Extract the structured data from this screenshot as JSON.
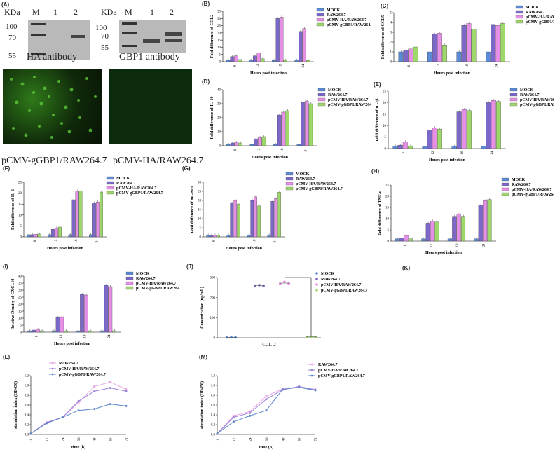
{
  "colors": {
    "mock": "#5b8bd6",
    "raw": "#7b68c8",
    "ha": "#e58fe5",
    "gbp1": "#9fd86a",
    "line_raw": "#e8a0e6",
    "line_ha": "#9b84d6",
    "line_gbp1": "#5d86c9"
  },
  "panel_letters": {
    "A": "(A)",
    "B": "(B)",
    "C": "(C)",
    "D": "(D)",
    "E": "(E)",
    "F": "(F)",
    "G": "(G)",
    "H": "(H)",
    "I": "(I)",
    "J": "(J)",
    "K": "(K)",
    "L": "(L)",
    "M": "(M)"
  },
  "blots": {
    "kda": "KDa",
    "m": "M",
    "lane1": "1",
    "lane2": "2",
    "left_markers": [
      "100",
      "70",
      "55"
    ],
    "right_markers": [
      "100",
      "70",
      "55"
    ],
    "left_label": "HA antibody",
    "right_label": "GBP1 antibody"
  },
  "micrographs": {
    "left_label": "pCMV-gGBP1/RAW264.7",
    "right_label": "pCMV-HA/RAW264.7"
  },
  "legend4": [
    "MOCK",
    "RAW264.7",
    "pCMV-HA/RAW264.7",
    "pCMV-gGBP1/RAW264.7"
  ],
  "legend3": [
    "RAW264.7",
    "pCMV-HA/RAW264.7",
    "pCMV-gGBP1/RAW264.7"
  ],
  "chart_data": [
    {
      "panel": "B",
      "type": "bar",
      "ylabel": "Fold difference of CCL2",
      "xlabel": "Hours post infection",
      "categories": [
        "6",
        "12",
        "18",
        "24"
      ],
      "ylim": [
        0,
        35
      ],
      "yticks": [
        0,
        5,
        10,
        15,
        20,
        25,
        30,
        35
      ],
      "series": [
        {
          "name": "MOCK",
          "values": [
            1,
            1,
            1,
            1
          ]
        },
        {
          "name": "RAW264.7",
          "values": [
            3.5,
            4,
            30,
            21
          ]
        },
        {
          "name": "pCMV-HA/RAW264.7",
          "values": [
            4,
            6,
            31,
            23
          ]
        },
        {
          "name": "pCMV-gGBP1/RAW264.7",
          "values": [
            1.5,
            2,
            1,
            0.8
          ]
        }
      ]
    },
    {
      "panel": "C",
      "type": "bar",
      "ylabel": "Fold difference of CCL5",
      "xlabel": "Hours post infection",
      "categories": [
        "6",
        "12",
        "18",
        "24"
      ],
      "ylim": [
        0,
        5
      ],
      "yticks": [
        0,
        1,
        2,
        3,
        4,
        5
      ],
      "series": [
        {
          "name": "MOCK",
          "values": [
            1,
            1,
            1,
            1
          ]
        },
        {
          "name": "RAW264.7",
          "values": [
            1.2,
            2.8,
            3.7,
            3.8
          ]
        },
        {
          "name": "pCMV-HA/RAW264.7",
          "values": [
            1.3,
            2.9,
            3.9,
            3.7
          ]
        },
        {
          "name": "pCMV-gGBP1/RAW264.7",
          "values": [
            1.5,
            1.7,
            3.3,
            3.9
          ]
        }
      ]
    },
    {
      "panel": "D",
      "type": "bar",
      "ylabel": "Fold difference of IL-10",
      "xlabel": "Hours post infection",
      "categories": [
        "6",
        "12",
        "18",
        "24"
      ],
      "ylim": [
        0,
        40
      ],
      "yticks": [
        0,
        10,
        20,
        30,
        40
      ],
      "series": [
        {
          "name": "MOCK",
          "values": [
            1,
            1,
            1,
            1
          ]
        },
        {
          "name": "RAW264.7",
          "values": [
            2,
            5,
            22,
            31
          ]
        },
        {
          "name": "pCMV-HA/RAW264.7",
          "values": [
            2.5,
            6,
            24,
            32
          ]
        },
        {
          "name": "pCMV-gGBP1/RAW264.7",
          "values": [
            2,
            6.5,
            25,
            30
          ]
        }
      ]
    },
    {
      "panel": "E",
      "type": "bar",
      "ylabel": "Fold difference of IL-1β",
      "xlabel": "Hours post infection",
      "categories": [
        "6",
        "12",
        "18",
        "24"
      ],
      "ylim": [
        0,
        25
      ],
      "yticks": [
        0,
        5,
        10,
        15,
        20,
        25
      ],
      "series": [
        {
          "name": "MOCK",
          "values": [
            1,
            1,
            1,
            1
          ]
        },
        {
          "name": "RAW264.7",
          "values": [
            1.5,
            8,
            16,
            20
          ]
        },
        {
          "name": "pCMV-HA/RAW264.7",
          "values": [
            3,
            9,
            17,
            21
          ]
        },
        {
          "name": "pCMV-gGBP1/RAW264.7",
          "values": [
            1,
            8.5,
            16.5,
            20.5
          ]
        }
      ]
    },
    {
      "panel": "F",
      "type": "bar",
      "ylabel": "Fold difference of IL-6",
      "xlabel": "Hours post infection",
      "categories": [
        "6",
        "12",
        "18",
        "24"
      ],
      "ylim": [
        0,
        25
      ],
      "yticks": [
        0,
        5,
        10,
        15,
        20,
        25
      ],
      "series": [
        {
          "name": "MOCK",
          "values": [
            1,
            1,
            1,
            1
          ]
        },
        {
          "name": "RAW264.7",
          "values": [
            1,
            3.5,
            17,
            15.5
          ]
        },
        {
          "name": "pCMV-HA/RAW264.7",
          "values": [
            1.2,
            4,
            21,
            16
          ]
        },
        {
          "name": "pCMV-gGBP1/RAW264.7",
          "values": [
            1.3,
            4.5,
            21,
            20.5
          ]
        }
      ]
    },
    {
      "panel": "G",
      "type": "bar",
      "ylabel": "Fold difference of mGBP1",
      "xlabel": "Hours post infection",
      "categories": [
        "6",
        "12",
        "18",
        "24"
      ],
      "ylim": [
        0,
        30
      ],
      "yticks": [
        0,
        5,
        10,
        15,
        20,
        25,
        30
      ],
      "series": [
        {
          "name": "MOCK",
          "values": [
            1,
            1,
            1,
            1
          ]
        },
        {
          "name": "RAW264.7",
          "values": [
            1,
            18.5,
            20,
            19.5
          ]
        },
        {
          "name": "pCMV-HA/RAW264.7",
          "values": [
            1,
            20,
            22,
            21
          ]
        },
        {
          "name": "pCMV-gGBP1/RAW264.7",
          "values": [
            1,
            18,
            17,
            24.5
          ]
        }
      ]
    },
    {
      "panel": "H",
      "type": "bar",
      "ylabel": "Fold difference of TNF-α",
      "xlabel": "Hours post infection",
      "categories": [
        "6",
        "12",
        "18",
        "24"
      ],
      "ylim": [
        0,
        25
      ],
      "yticks": [
        0,
        5,
        10,
        15,
        20,
        25
      ],
      "series": [
        {
          "name": "MOCK",
          "values": [
            1,
            1,
            1,
            1
          ]
        },
        {
          "name": "RAW264.7",
          "values": [
            1.5,
            8,
            11,
            16
          ]
        },
        {
          "name": "pCMV-HA/RAW264.7",
          "values": [
            2.5,
            9,
            12,
            18
          ]
        },
        {
          "name": "pCMV-gGBP1/RAW264.7",
          "values": [
            1,
            8.5,
            11,
            18.5
          ]
        }
      ]
    },
    {
      "panel": "I",
      "type": "bar",
      "ylabel": "Relative Density of CXCL10",
      "xlabel": "Hours post infection",
      "categories": [
        "6",
        "12",
        "18",
        "24"
      ],
      "ylim": [
        0,
        40
      ],
      "yticks": [
        0,
        5,
        10,
        15,
        20,
        25,
        30,
        35,
        40
      ],
      "series": [
        {
          "name": "MOCK",
          "values": [
            1,
            1,
            1,
            1
          ]
        },
        {
          "name": "RAW264.7",
          "values": [
            1.5,
            10.5,
            27,
            33.5
          ]
        },
        {
          "name": "pCMV-HA/RAW264.7",
          "values": [
            2,
            11,
            26.5,
            32.5
          ]
        },
        {
          "name": "pCMV-gGBP1/RAW264.7",
          "values": [
            1,
            1,
            1,
            1
          ]
        }
      ]
    },
    {
      "panel": "J",
      "type": "scatter",
      "ylabel": "Concentration (ng/mL)",
      "category": "CCL-2",
      "ylim": [
        0,
        300
      ],
      "yticks": [
        0,
        100,
        200,
        300
      ],
      "series": [
        {
          "name": "MOCK",
          "values": [
            2,
            3,
            2
          ]
        },
        {
          "name": "RAW264.7",
          "values": [
            258,
            262,
            257
          ]
        },
        {
          "name": "pCMV-HA/RAW264.7",
          "values": [
            268,
            278,
            270
          ]
        },
        {
          "name": "pCMV-gGBP1/RAW264.7",
          "values": [
            4,
            5,
            4
          ]
        }
      ]
    },
    {
      "panel": "L",
      "type": "line",
      "ylabel": "stimulation index (OD450)",
      "xlabel": "time (h)",
      "x": [
        0,
        12,
        24,
        36,
        48,
        60,
        72
      ],
      "ylim": [
        0,
        1.2
      ],
      "yticks": [
        0,
        0.2,
        0.4,
        0.6,
        0.8,
        1.0,
        1.2
      ],
      "series": [
        {
          "name": "RAW264.7",
          "values": [
            0.02,
            0.25,
            0.35,
            0.65,
            0.98,
            1.07,
            0.92
          ]
        },
        {
          "name": "pCMV-HA/RAW264.7",
          "values": [
            0.02,
            0.24,
            0.35,
            0.68,
            0.88,
            0.95,
            0.88
          ]
        },
        {
          "name": "pCMV-gGBP1/RAW264.7",
          "values": [
            0.02,
            0.23,
            0.35,
            0.49,
            0.52,
            0.62,
            0.58
          ]
        }
      ]
    },
    {
      "panel": "M",
      "type": "line",
      "ylabel": "stimulation index (OD450)",
      "xlabel": "time (h)",
      "x": [
        0,
        12,
        24,
        36,
        48,
        60,
        72
      ],
      "ylim": [
        0,
        1.2
      ],
      "yticks": [
        0,
        0.2,
        0.4,
        0.6,
        0.8,
        1.0,
        1.2
      ],
      "series": [
        {
          "name": "RAW264.7",
          "values": [
            0.02,
            0.38,
            0.47,
            0.78,
            0.93,
            0.96,
            0.92
          ]
        },
        {
          "name": "pCMV-HA/RAW264.7",
          "values": [
            0.02,
            0.35,
            0.44,
            0.72,
            0.91,
            0.98,
            0.91
          ]
        },
        {
          "name": "pCMV-gGBP1/RAW264.7",
          "values": [
            0.02,
            0.26,
            0.38,
            0.49,
            0.92,
            0.96,
            0.9
          ]
        }
      ]
    }
  ]
}
